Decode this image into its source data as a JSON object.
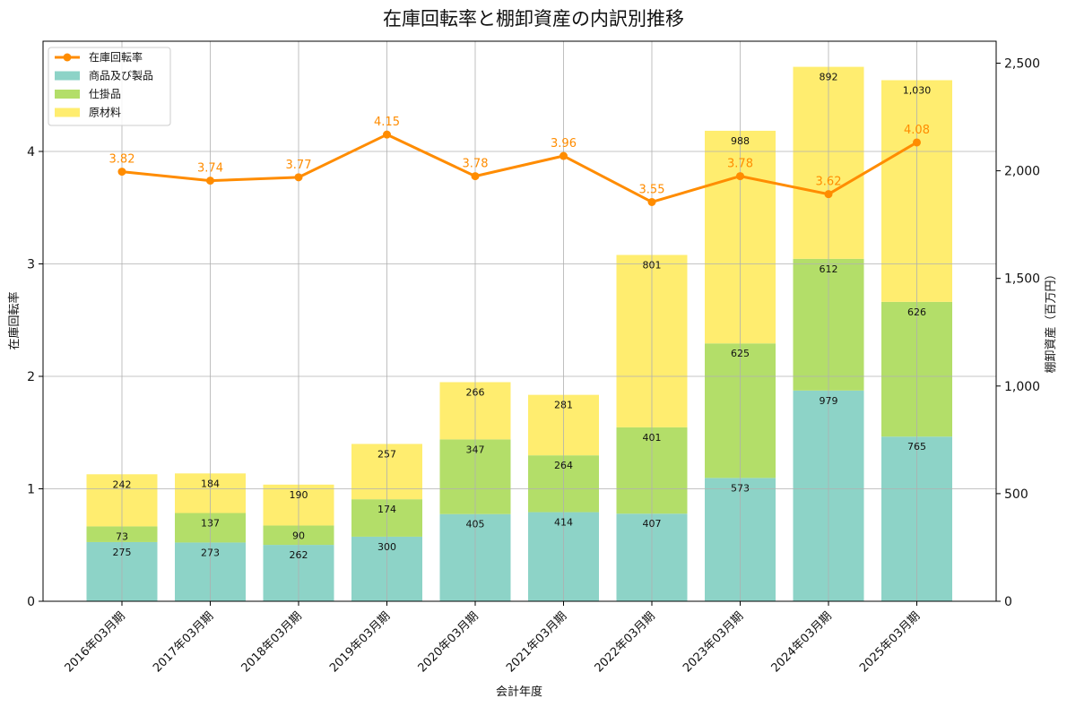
{
  "chart_data": {
    "type": "bar",
    "title": "在庫回転率と棚卸資産の内訳別推移",
    "xlabel": "会計年度",
    "ylabel_left": "在庫回転率",
    "ylabel_right": "棚卸資産（百万円）",
    "categories": [
      "2016年03月期",
      "2017年03月期",
      "2018年03月期",
      "2019年03月期",
      "2020年03月期",
      "2021年03月期",
      "2022年03月期",
      "2023年03月期",
      "2024年03月期",
      "2025年03月期"
    ],
    "stacked_series": [
      {
        "name": "商品及び製品",
        "color": "#8dd3c7",
        "values": [
          275,
          273,
          262,
          300,
          405,
          414,
          407,
          573,
          979,
          765
        ]
      },
      {
        "name": "仕掛品",
        "color": "#b3de69",
        "values": [
          73,
          137,
          90,
          174,
          347,
          264,
          401,
          625,
          612,
          626
        ]
      },
      {
        "name": "原材料",
        "color": "#ffed6f",
        "values": [
          242,
          184,
          190,
          257,
          266,
          281,
          801,
          988,
          892,
          1030
        ]
      }
    ],
    "line_series": {
      "name": "在庫回転率",
      "color": "#ff8c00",
      "values": [
        3.82,
        3.74,
        3.77,
        4.15,
        3.78,
        3.96,
        3.55,
        3.78,
        3.62,
        4.08
      ]
    },
    "left_axis": {
      "ylim": [
        0,
        4.98
      ],
      "ticks": [
        0,
        1,
        2,
        3,
        4
      ],
      "tick_labels": [
        "0",
        "1",
        "2",
        "3",
        "4"
      ]
    },
    "right_axis": {
      "ylim": [
        0,
        2602
      ],
      "ticks": [
        0,
        500,
        1000,
        1500,
        2000,
        2500
      ],
      "tick_labels": [
        "0",
        "500",
        "1,000",
        "1,500",
        "2,000",
        "2,500"
      ]
    },
    "grid": true,
    "legend_position": "top-left",
    "legend_order": [
      "在庫回転率",
      "商品及び製品",
      "仕掛品",
      "原材料"
    ]
  }
}
